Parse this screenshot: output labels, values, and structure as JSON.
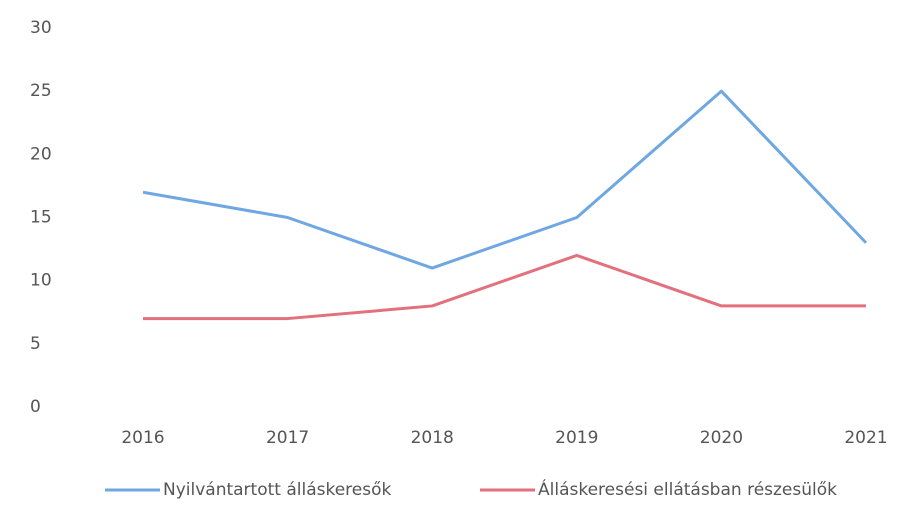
{
  "chart_data": {
    "type": "line",
    "categories": [
      "2016",
      "2017",
      "2018",
      "2019",
      "2020",
      "2021"
    ],
    "series": [
      {
        "name": "Nyilvántartott álláskeresők",
        "color": "#6fa7e3",
        "values": [
          17,
          15,
          11,
          15,
          25,
          13
        ]
      },
      {
        "name": "Álláskeresési ellátásban részesülők",
        "color": "#e2707d",
        "values": [
          7,
          7,
          8,
          12,
          8,
          8
        ]
      }
    ],
    "ylim": [
      0,
      30
    ],
    "yticks": [
      0,
      5,
      10,
      15,
      20,
      25,
      30
    ],
    "grid": false,
    "legend": "bottom"
  }
}
